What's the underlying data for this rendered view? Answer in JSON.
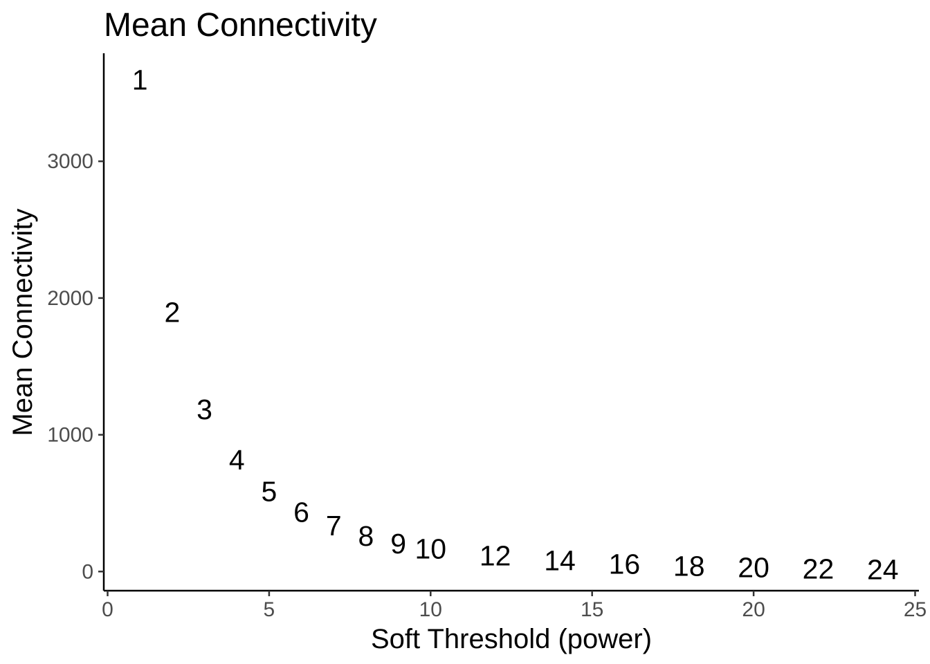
{
  "title": "Mean Connectivity",
  "chart_data": {
    "type": "scatter",
    "title": "Mean Connectivity",
    "xlabel": "Soft Threshold (power)",
    "ylabel": "Mean Connectivity",
    "xlim": [
      0,
      25
    ],
    "ylim": [
      -130,
      3790
    ],
    "x_ticks": [
      0,
      5,
      10,
      15,
      20,
      25
    ],
    "x_tick_labels": [
      "0",
      "5",
      "10",
      "15",
      "20",
      "25"
    ],
    "y_ticks": [
      0,
      1000,
      2000,
      3000
    ],
    "y_tick_labels": [
      "0",
      "1000",
      "2000",
      "3000"
    ],
    "grid": false,
    "legend": "none",
    "marker": "text",
    "points": [
      {
        "x": 1,
        "y": 3600,
        "label": "1"
      },
      {
        "x": 2,
        "y": 1900,
        "label": "2"
      },
      {
        "x": 3,
        "y": 1190,
        "label": "3"
      },
      {
        "x": 4,
        "y": 820,
        "label": "4"
      },
      {
        "x": 5,
        "y": 590,
        "label": "5"
      },
      {
        "x": 6,
        "y": 440,
        "label": "6"
      },
      {
        "x": 7,
        "y": 340,
        "label": "7"
      },
      {
        "x": 8,
        "y": 265,
        "label": "8"
      },
      {
        "x": 9,
        "y": 210,
        "label": "9"
      },
      {
        "x": 10,
        "y": 170,
        "label": "10"
      },
      {
        "x": 12,
        "y": 120,
        "label": "12"
      },
      {
        "x": 14,
        "y": 85,
        "label": "14"
      },
      {
        "x": 16,
        "y": 60,
        "label": "16"
      },
      {
        "x": 18,
        "y": 45,
        "label": "18"
      },
      {
        "x": 20,
        "y": 35,
        "label": "20"
      },
      {
        "x": 22,
        "y": 25,
        "label": "22"
      },
      {
        "x": 24,
        "y": 20,
        "label": "24"
      }
    ]
  }
}
